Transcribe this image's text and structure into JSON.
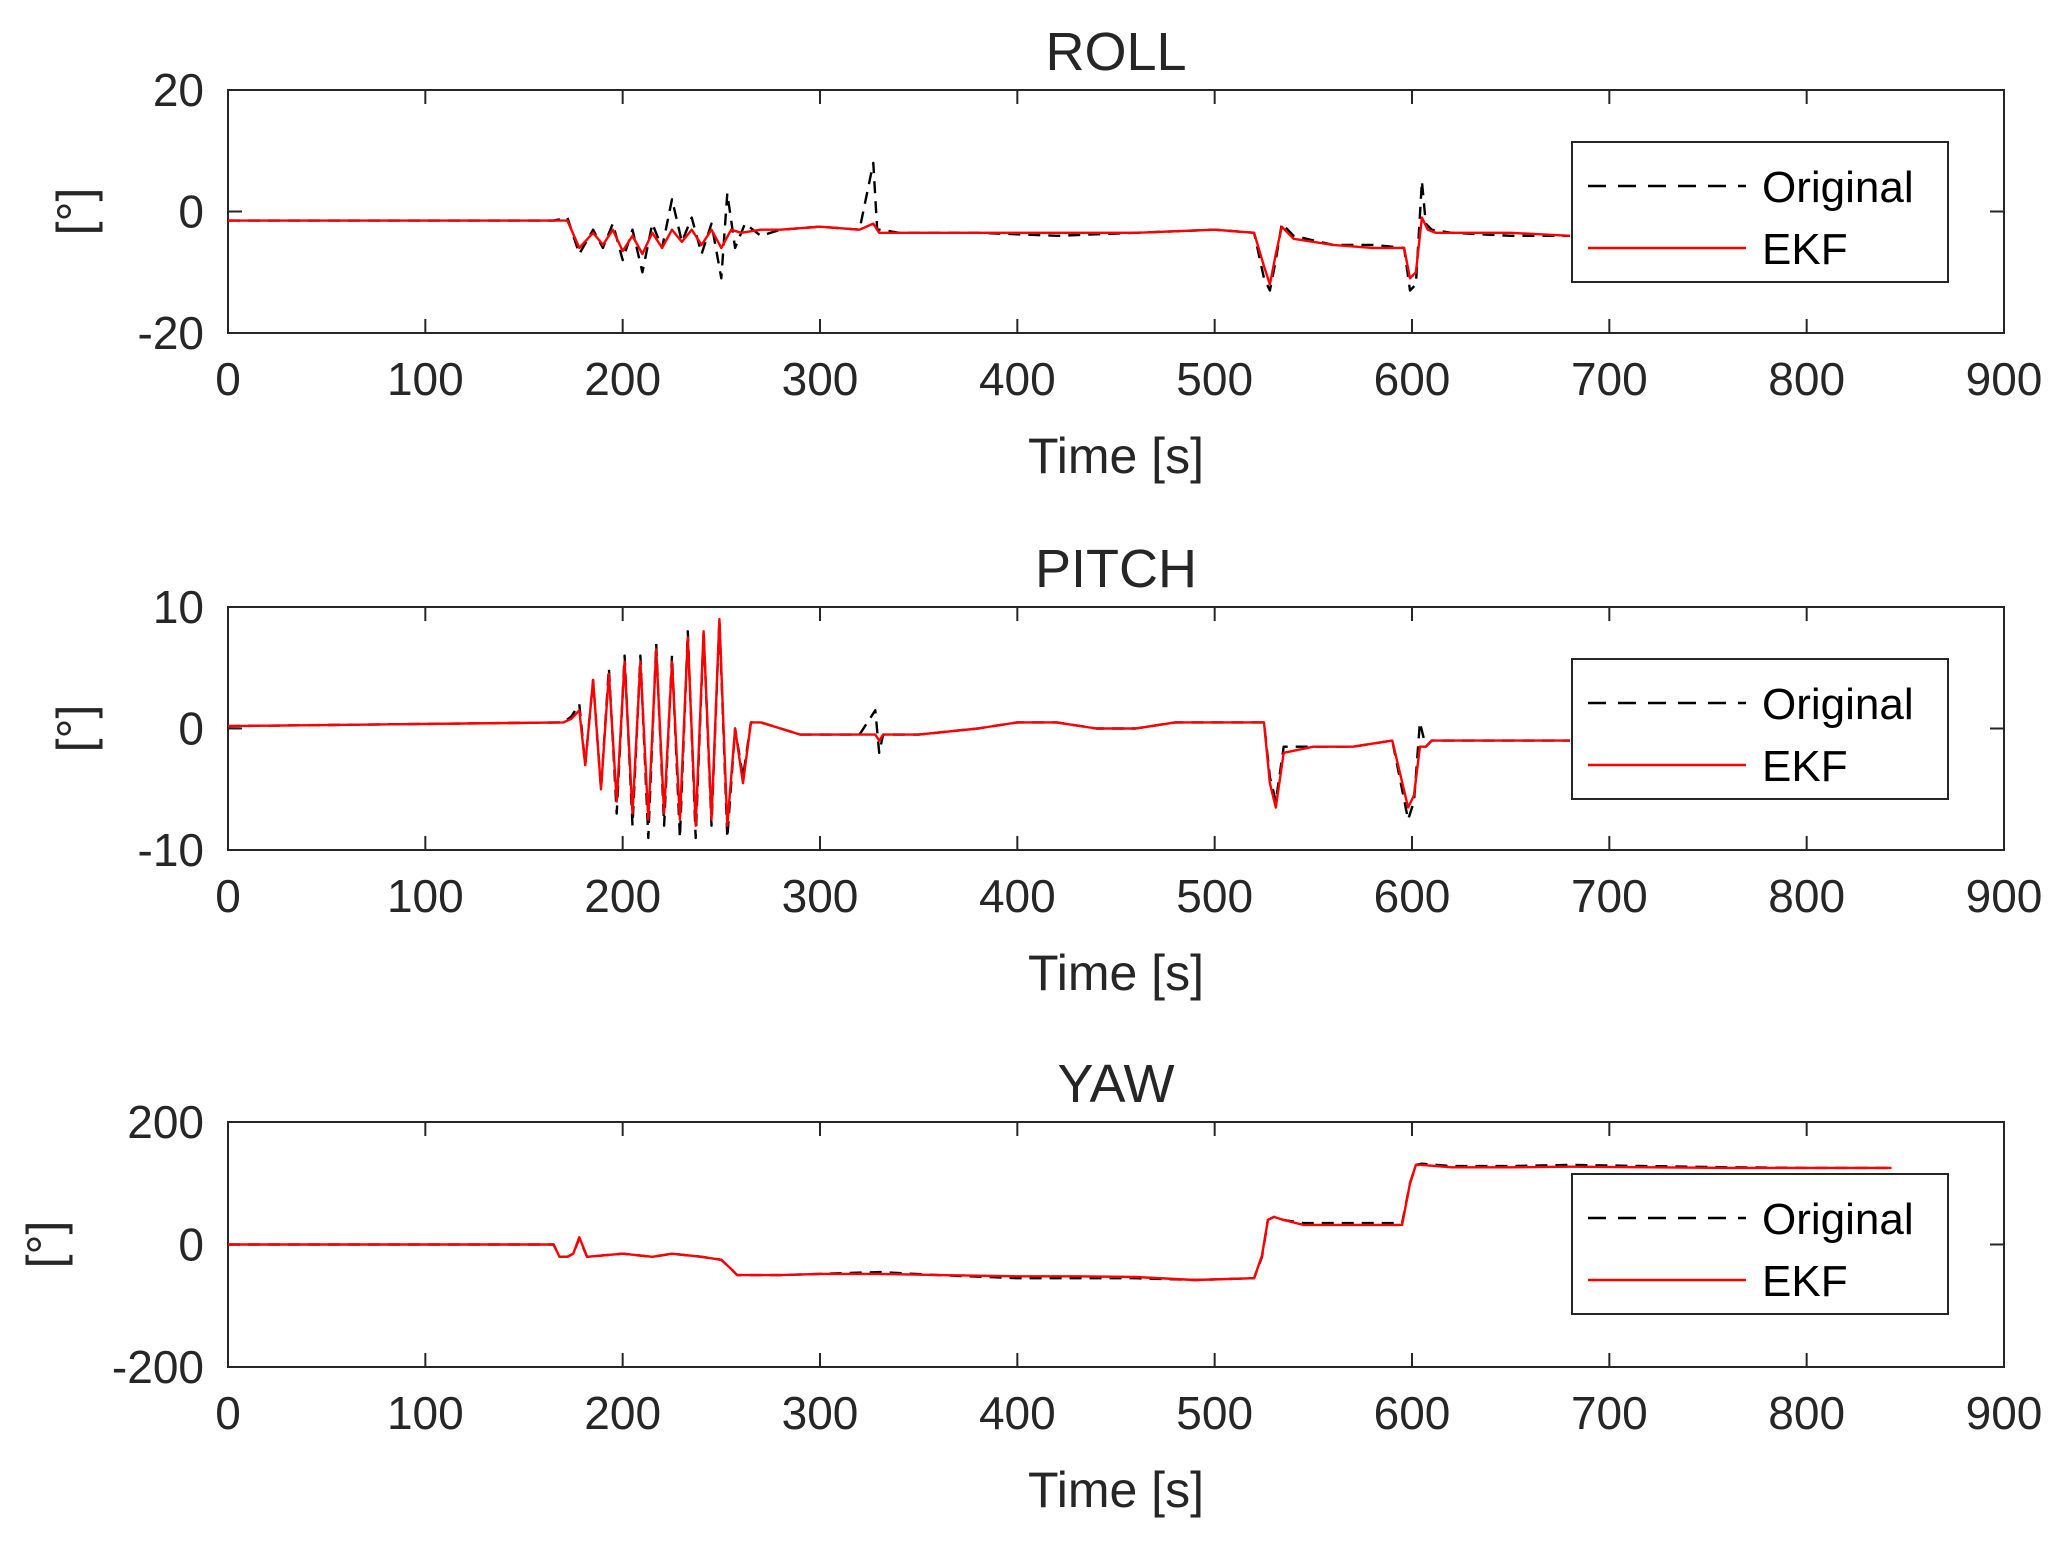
{
  "chart_data": [
    {
      "type": "line",
      "title": "ROLL",
      "xlabel": "Time [s]",
      "ylabel": "[°]",
      "xlim": [
        0,
        900
      ],
      "ylim": [
        -20,
        20
      ],
      "xticks": [
        "0",
        "100",
        "200",
        "300",
        "400",
        "500",
        "600",
        "700",
        "800",
        "900"
      ],
      "yticks": [
        "20",
        "0",
        "-20"
      ],
      "legend_position": "right",
      "series": [
        {
          "name": "Original",
          "color": "#000000",
          "style": "dashed",
          "x": [
            0,
            165,
            172,
            178,
            185,
            190,
            195,
            200,
            205,
            210,
            215,
            220,
            225,
            230,
            235,
            240,
            245,
            250,
            253,
            257,
            262,
            270,
            280,
            300,
            320,
            327,
            329,
            331,
            340,
            380,
            420,
            460,
            500,
            520,
            525,
            528,
            531,
            534,
            540,
            560,
            580,
            596,
            599,
            602,
            605,
            607,
            610,
            620,
            650,
            680
          ],
          "y": [
            -1.5,
            -1.5,
            -1,
            -7,
            -3,
            -6,
            -2,
            -8,
            -3,
            -10,
            -2,
            -6,
            2,
            -5,
            -1,
            -7,
            -2,
            -11,
            3,
            -6,
            -2,
            -4,
            -3,
            -2.5,
            -3,
            8,
            -3,
            -3,
            -3.5,
            -3.5,
            -4,
            -3.5,
            -3,
            -3.5,
            -11,
            -13,
            -8,
            -2,
            -4,
            -5.5,
            -5.5,
            -6,
            -13,
            -12,
            5,
            -2,
            -3,
            -3.5,
            -4,
            -4
          ]
        },
        {
          "name": "EKF",
          "color": "#ff0000",
          "style": "solid",
          "x": [
            0,
            165,
            172,
            178,
            185,
            190,
            195,
            200,
            205,
            210,
            215,
            220,
            225,
            230,
            235,
            240,
            245,
            250,
            255,
            260,
            270,
            280,
            300,
            320,
            327,
            330,
            340,
            380,
            420,
            460,
            500,
            520,
            525,
            528,
            531,
            534,
            540,
            560,
            580,
            596,
            599,
            602,
            605,
            608,
            612,
            620,
            650,
            680
          ],
          "y": [
            -1.5,
            -1.5,
            -1.5,
            -6,
            -3.5,
            -5.5,
            -3,
            -6.5,
            -4,
            -7,
            -3.5,
            -6,
            -3,
            -5,
            -3,
            -5.5,
            -3,
            -6,
            -3,
            -3.5,
            -3,
            -3,
            -2.5,
            -3,
            -2,
            -3.5,
            -3.5,
            -3.5,
            -3.5,
            -3.5,
            -3,
            -3.5,
            -9,
            -12,
            -7,
            -2.5,
            -4.5,
            -5.5,
            -6,
            -6,
            -11,
            -10,
            -1,
            -3,
            -3.5,
            -3.5,
            -3.5,
            -4
          ]
        }
      ]
    },
    {
      "type": "line",
      "title": "PITCH",
      "xlabel": "Time [s]",
      "ylabel": "[°]",
      "xlim": [
        0,
        900
      ],
      "ylim": [
        -10,
        10
      ],
      "xticks": [
        "0",
        "100",
        "200",
        "300",
        "400",
        "500",
        "600",
        "700",
        "800",
        "900"
      ],
      "yticks": [
        "10",
        "0",
        "-10"
      ],
      "legend_position": "right",
      "series": [
        {
          "name": "Original",
          "color": "#000000",
          "style": "dashed",
          "x": [
            0,
            170,
            174,
            178,
            181,
            185,
            189,
            193,
            197,
            201,
            205,
            209,
            213,
            217,
            221,
            225,
            229,
            233,
            237,
            241,
            245,
            249,
            253,
            257,
            261,
            265,
            270,
            280,
            290,
            300,
            320,
            328,
            330,
            332,
            350,
            380,
            400,
            420,
            440,
            460,
            480,
            500,
            520,
            525,
            528,
            531,
            535,
            550,
            570,
            590,
            598,
            601,
            604,
            607,
            610,
            630,
            660,
            680
          ],
          "y": [
            0.2,
            0.5,
            1,
            2,
            -3,
            4,
            -5,
            5,
            -7,
            6,
            -8,
            6,
            -9,
            7,
            -8,
            6,
            -9,
            8,
            -9,
            8,
            -8,
            9,
            -9,
            0,
            -4,
            0.5,
            0.5,
            0,
            -0.5,
            -0.5,
            -0.5,
            1.5,
            -2,
            -0.5,
            -0.5,
            0,
            0.5,
            0.5,
            0,
            0,
            0.5,
            0.5,
            0.5,
            0.5,
            -4,
            -6,
            -1.5,
            -1.5,
            -1.5,
            -1,
            -7.5,
            -6,
            0.5,
            -1.5,
            -1,
            -1,
            -1,
            -1
          ]
        },
        {
          "name": "EKF",
          "color": "#ff0000",
          "style": "solid",
          "x": [
            0,
            170,
            174,
            178,
            181,
            185,
            189,
            193,
            197,
            201,
            205,
            209,
            213,
            217,
            221,
            225,
            229,
            233,
            237,
            241,
            245,
            249,
            253,
            257,
            261,
            265,
            270,
            280,
            290,
            300,
            320,
            328,
            330,
            332,
            350,
            380,
            400,
            420,
            440,
            460,
            480,
            500,
            520,
            525,
            528,
            531,
            535,
            550,
            570,
            590,
            598,
            601,
            604,
            607,
            610,
            630,
            660,
            680
          ],
          "y": [
            0.2,
            0.5,
            0.8,
            1.5,
            -3,
            4,
            -5,
            4.5,
            -6,
            5.5,
            -7,
            5.5,
            -7.5,
            6.5,
            -7,
            5.5,
            -7.5,
            7.5,
            -8,
            8,
            -7.5,
            9,
            -8,
            0,
            -4.5,
            0.5,
            0.5,
            0,
            -0.5,
            -0.5,
            -0.5,
            -0.5,
            -1,
            -0.5,
            -0.5,
            0,
            0.5,
            0.5,
            0,
            0,
            0.5,
            0.5,
            0.5,
            0.5,
            -4.5,
            -6.5,
            -2,
            -1.5,
            -1.5,
            -1,
            -6.5,
            -5.5,
            -1.5,
            -1.5,
            -1,
            -1,
            -1,
            -1
          ]
        }
      ]
    },
    {
      "type": "line",
      "title": "YAW",
      "xlabel": "Time [s]",
      "ylabel": "[°]",
      "xlim": [
        0,
        900
      ],
      "ylim": [
        -200,
        200
      ],
      "xticks": [
        "0",
        "100",
        "200",
        "300",
        "400",
        "500",
        "600",
        "700",
        "800",
        "900"
      ],
      "yticks": [
        "200",
        "0",
        "-200"
      ],
      "legend_position": "right",
      "series": [
        {
          "name": "Original",
          "color": "#000000",
          "style": "dashed",
          "x": [
            0,
            165,
            168,
            172,
            175,
            178,
            182,
            200,
            215,
            225,
            240,
            250,
            255,
            258,
            280,
            300,
            330,
            360,
            400,
            430,
            460,
            490,
            520,
            524,
            527,
            530,
            535,
            545,
            560,
            580,
            595,
            599,
            602,
            605,
            620,
            650,
            680,
            720,
            760,
            800,
            843
          ],
          "y": [
            0,
            0,
            -20,
            -20,
            -15,
            10,
            -20,
            -15,
            -20,
            -15,
            -20,
            -25,
            -40,
            -50,
            -50,
            -48,
            -45,
            -50,
            -55,
            -55,
            -55,
            -58,
            -55,
            -20,
            40,
            45,
            40,
            35,
            35,
            35,
            35,
            100,
            130,
            132,
            128,
            128,
            130,
            128,
            126,
            125,
            125
          ]
        },
        {
          "name": "EKF",
          "color": "#ff0000",
          "style": "solid",
          "x": [
            0,
            165,
            168,
            172,
            175,
            178,
            182,
            200,
            215,
            225,
            240,
            250,
            255,
            258,
            280,
            300,
            330,
            360,
            400,
            430,
            460,
            490,
            520,
            524,
            527,
            530,
            535,
            545,
            560,
            580,
            595,
            599,
            602,
            605,
            620,
            650,
            680,
            720,
            760,
            800,
            843
          ],
          "y": [
            0,
            0,
            -20,
            -20,
            -15,
            12,
            -20,
            -15,
            -20,
            -15,
            -20,
            -25,
            -40,
            -50,
            -50,
            -48,
            -48,
            -50,
            -52,
            -52,
            -53,
            -58,
            -55,
            -18,
            40,
            45,
            40,
            32,
            32,
            32,
            32,
            100,
            130,
            130,
            126,
            126,
            127,
            126,
            125,
            125,
            125
          ]
        }
      ]
    }
  ]
}
